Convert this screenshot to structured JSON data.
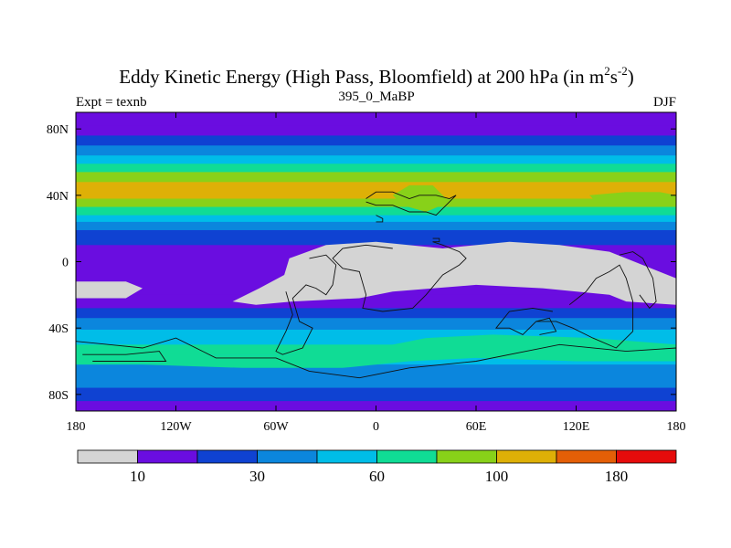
{
  "chart_data": {
    "type": "heatmap",
    "title_main": "Eddy Kinetic Energy (High Pass, Bloomfield) at 200 hPa (in m",
    "title_sup1": "2",
    "title_mid": "s",
    "title_sup2": "-2",
    "title_end": ")",
    "subtitle_left": "Expt = texnb",
    "subtitle_center": "395_0_MaBP",
    "subtitle_right": "DJF",
    "lon_range": [
      -180,
      180
    ],
    "lat_range": [
      -90,
      90
    ],
    "x_ticks": [
      {
        "value": -180,
        "label": "180"
      },
      {
        "value": -120,
        "label": "120W"
      },
      {
        "value": -60,
        "label": "60W"
      },
      {
        "value": 0,
        "label": "0"
      },
      {
        "value": 60,
        "label": "60E"
      },
      {
        "value": 120,
        "label": "120E"
      },
      {
        "value": 180,
        "label": "180"
      }
    ],
    "y_ticks": [
      {
        "value": 80,
        "label": "80N"
      },
      {
        "value": 40,
        "label": "40N"
      },
      {
        "value": 0,
        "label": "0"
      },
      {
        "value": -40,
        "label": "40S"
      },
      {
        "value": -80,
        "label": "80S"
      }
    ],
    "colorbar": {
      "colors": [
        "#d4d4d4",
        "#6a0de0",
        "#0f42d2",
        "#0b86dd",
        "#00bde8",
        "#10dc95",
        "#88d119",
        "#deb007",
        "#e45f07",
        "#e60b0b"
      ],
      "tick_labels": [
        {
          "after_box": 1,
          "label": "10"
        },
        {
          "after_box": 3,
          "label": "30"
        },
        {
          "after_box": 5,
          "label": "60"
        },
        {
          "after_box": 7,
          "label": "100"
        },
        {
          "after_box": 9,
          "label": "180"
        }
      ]
    },
    "zonal_mean_profile": [
      {
        "lat": 90,
        "level": 1
      },
      {
        "lat": 82,
        "level": 1
      },
      {
        "lat": 76,
        "level": 2
      },
      {
        "lat": 70,
        "level": 3
      },
      {
        "lat": 64,
        "level": 4
      },
      {
        "lat": 59,
        "level": 5
      },
      {
        "lat": 54,
        "level": 6
      },
      {
        "lat": 48,
        "level": 7
      },
      {
        "lat": 38,
        "level": 6
      },
      {
        "lat": 33,
        "level": 5
      },
      {
        "lat": 28,
        "level": 4
      },
      {
        "lat": 24,
        "level": 3
      },
      {
        "lat": 19,
        "level": 2
      },
      {
        "lat": 10,
        "level": 1
      },
      {
        "lat": -20,
        "level": 1
      },
      {
        "lat": -28,
        "level": 2
      },
      {
        "lat": -34,
        "level": 3
      },
      {
        "lat": -41,
        "level": 4
      },
      {
        "lat": -50,
        "level": 5
      },
      {
        "lat": -56,
        "level": 4
      },
      {
        "lat": -62,
        "level": 3
      },
      {
        "lat": -76,
        "level": 2
      },
      {
        "lat": -84,
        "level": 1
      }
    ],
    "field_regions": [
      {
        "level": 6,
        "lonlat": [
          [
            10,
            40
          ],
          [
            20,
            46
          ],
          [
            34,
            46
          ],
          [
            44,
            36
          ],
          [
            30,
            30
          ],
          [
            16,
            34
          ]
        ]
      },
      {
        "level": 6,
        "lonlat": [
          [
            128,
            40
          ],
          [
            150,
            42
          ],
          [
            170,
            42
          ],
          [
            180,
            40
          ],
          [
            180,
            34
          ],
          [
            150,
            34
          ],
          [
            132,
            36
          ]
        ]
      },
      {
        "level": 5,
        "lonlat": [
          [
            -180,
            -52
          ],
          [
            -150,
            -54
          ],
          [
            -100,
            -56
          ],
          [
            -50,
            -56
          ],
          [
            -10,
            -54
          ],
          [
            30,
            -46
          ],
          [
            70,
            -44
          ],
          [
            130,
            -46
          ],
          [
            180,
            -50
          ],
          [
            180,
            -60
          ],
          [
            120,
            -60
          ],
          [
            60,
            -58
          ],
          [
            20,
            -60
          ],
          [
            -20,
            -64
          ],
          [
            -80,
            -64
          ],
          [
            -140,
            -62
          ],
          [
            -180,
            -62
          ]
        ]
      },
      {
        "level": 0,
        "lonlat": [
          [
            -52,
            2
          ],
          [
            -30,
            10
          ],
          [
            0,
            12
          ],
          [
            40,
            8
          ],
          [
            80,
            12
          ],
          [
            110,
            10
          ],
          [
            140,
            6
          ],
          [
            180,
            -10
          ],
          [
            180,
            -26
          ],
          [
            150,
            -24
          ],
          [
            140,
            -20
          ],
          [
            100,
            -16
          ],
          [
            60,
            -14
          ],
          [
            10,
            -18
          ],
          [
            -10,
            -22
          ],
          [
            -50,
            -24
          ],
          [
            -72,
            -26
          ],
          [
            -86,
            -24
          ],
          [
            -70,
            -16
          ],
          [
            -55,
            -8
          ]
        ]
      },
      {
        "level": 0,
        "lonlat": [
          [
            -180,
            -12
          ],
          [
            -150,
            -12
          ],
          [
            -140,
            -16
          ],
          [
            -150,
            -22
          ],
          [
            -180,
            -22
          ]
        ]
      }
    ],
    "land_outlines": [
      [
        [
          -6,
          38
        ],
        [
          0,
          42
        ],
        [
          10,
          42
        ],
        [
          20,
          38
        ],
        [
          26,
          40
        ],
        [
          36,
          40
        ],
        [
          44,
          38
        ],
        [
          48,
          40
        ],
        [
          42,
          34
        ],
        [
          36,
          28
        ],
        [
          30,
          30
        ],
        [
          20,
          30
        ],
        [
          10,
          34
        ],
        [
          0,
          34
        ],
        [
          -6,
          36
        ]
      ],
      [
        [
          0,
          28
        ],
        [
          4,
          26
        ],
        [
          4,
          24
        ],
        [
          0,
          24
        ]
      ],
      [
        [
          34,
          14
        ],
        [
          38,
          14
        ],
        [
          38,
          12
        ],
        [
          34,
          12
        ]
      ],
      [
        [
          34,
          12
        ],
        [
          40,
          10
        ],
        [
          50,
          6
        ],
        [
          54,
          2
        ],
        [
          50,
          -2
        ],
        [
          40,
          -8
        ],
        [
          30,
          -20
        ],
        [
          22,
          -28
        ],
        [
          4,
          -30
        ],
        [
          -8,
          -28
        ],
        [
          -6,
          -20
        ],
        [
          -10,
          -6
        ],
        [
          -20,
          -4
        ],
        [
          -26,
          2
        ],
        [
          -20,
          8
        ],
        [
          -6,
          10
        ],
        [
          10,
          8
        ]
      ],
      [
        [
          -40,
          2
        ],
        [
          -30,
          4
        ],
        [
          -24,
          -2
        ],
        [
          -26,
          -14
        ],
        [
          -30,
          -20
        ],
        [
          -36,
          -16
        ],
        [
          -42,
          -14
        ],
        [
          -50,
          -22
        ],
        [
          -46,
          -36
        ],
        [
          -38,
          -40
        ],
        [
          -44,
          -52
        ],
        [
          -56,
          -56
        ],
        [
          -60,
          -54
        ],
        [
          -54,
          -42
        ],
        [
          -50,
          -32
        ],
        [
          -54,
          -18
        ]
      ],
      [
        [
          116,
          -26
        ],
        [
          126,
          -18
        ],
        [
          132,
          -10
        ],
        [
          140,
          -6
        ],
        [
          146,
          -2
        ],
        [
          150,
          -10
        ],
        [
          154,
          -24
        ],
        [
          154,
          -42
        ],
        [
          144,
          -52
        ],
        [
          130,
          -46
        ],
        [
          118,
          -40
        ],
        [
          108,
          -36
        ],
        [
          96,
          -36
        ],
        [
          88,
          -44
        ],
        [
          80,
          -40
        ],
        [
          72,
          -40
        ],
        [
          80,
          -30
        ],
        [
          94,
          -28
        ],
        [
          106,
          -30
        ]
      ],
      [
        [
          146,
          4
        ],
        [
          154,
          6
        ],
        [
          160,
          2
        ],
        [
          166,
          -10
        ],
        [
          168,
          -24
        ],
        [
          164,
          -28
        ],
        [
          158,
          -20
        ]
      ],
      [
        [
          -180,
          -48
        ],
        [
          -160,
          -50
        ],
        [
          -140,
          -52
        ],
        [
          -120,
          -46
        ],
        [
          -104,
          -54
        ],
        [
          -96,
          -58
        ],
        [
          -60,
          -58
        ],
        [
          -40,
          -66
        ],
        [
          -10,
          -70
        ],
        [
          20,
          -64
        ],
        [
          60,
          -60
        ],
        [
          90,
          -54
        ],
        [
          110,
          -50
        ],
        [
          150,
          -54
        ],
        [
          180,
          -52
        ]
      ],
      [
        [
          -176,
          -56
        ],
        [
          -150,
          -56
        ],
        [
          -130,
          -54
        ],
        [
          -126,
          -60
        ],
        [
          -150,
          -60
        ],
        [
          -170,
          -60
        ]
      ],
      [
        [
          96,
          -36
        ],
        [
          104,
          -34
        ],
        [
          108,
          -42
        ],
        [
          98,
          -44
        ]
      ]
    ]
  }
}
